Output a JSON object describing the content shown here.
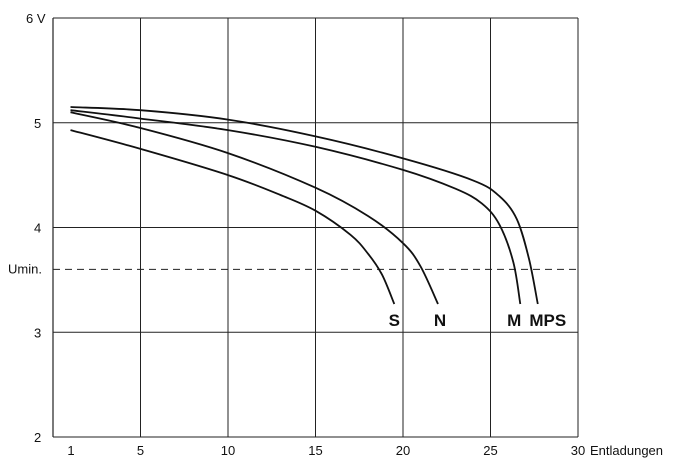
{
  "chart_data": {
    "type": "line",
    "title": "",
    "xlabel": "Entladungen",
    "ylabel": "V",
    "xlim": [
      0,
      30
    ],
    "ylim": [
      2,
      6
    ],
    "x_ticks": [
      "1",
      "5",
      "10",
      "15",
      "20",
      "25",
      "30"
    ],
    "y_ticks": [
      "2",
      "3",
      "4",
      "5",
      "6"
    ],
    "y_unit_label": "6 V",
    "grid": true,
    "reference_line": {
      "label": "Umin.",
      "y": 3.6,
      "style": "dashed"
    },
    "series": [
      {
        "name": "S",
        "x": [
          1,
          5,
          10,
          13,
          15,
          17,
          18,
          18.8,
          19.5
        ],
        "y": [
          4.93,
          4.75,
          4.5,
          4.31,
          4.16,
          3.93,
          3.75,
          3.55,
          3.27
        ]
      },
      {
        "name": "N",
        "x": [
          1,
          5,
          10,
          15,
          18,
          20,
          21,
          22
        ],
        "y": [
          5.1,
          4.95,
          4.71,
          4.38,
          4.11,
          3.85,
          3.63,
          3.27
        ]
      },
      {
        "name": "M",
        "x": [
          1,
          5,
          10,
          15,
          20,
          23,
          24.5,
          25.5,
          26.3,
          26.7
        ],
        "y": [
          5.12,
          5.04,
          4.93,
          4.77,
          4.55,
          4.37,
          4.23,
          4.03,
          3.67,
          3.27
        ]
      },
      {
        "name": "MPS",
        "x": [
          1,
          5,
          10,
          15,
          20,
          24,
          25.5,
          26.5,
          27.2,
          27.7
        ],
        "y": [
          5.15,
          5.12,
          5.03,
          4.87,
          4.66,
          4.45,
          4.3,
          4.08,
          3.7,
          3.27
        ]
      }
    ]
  }
}
